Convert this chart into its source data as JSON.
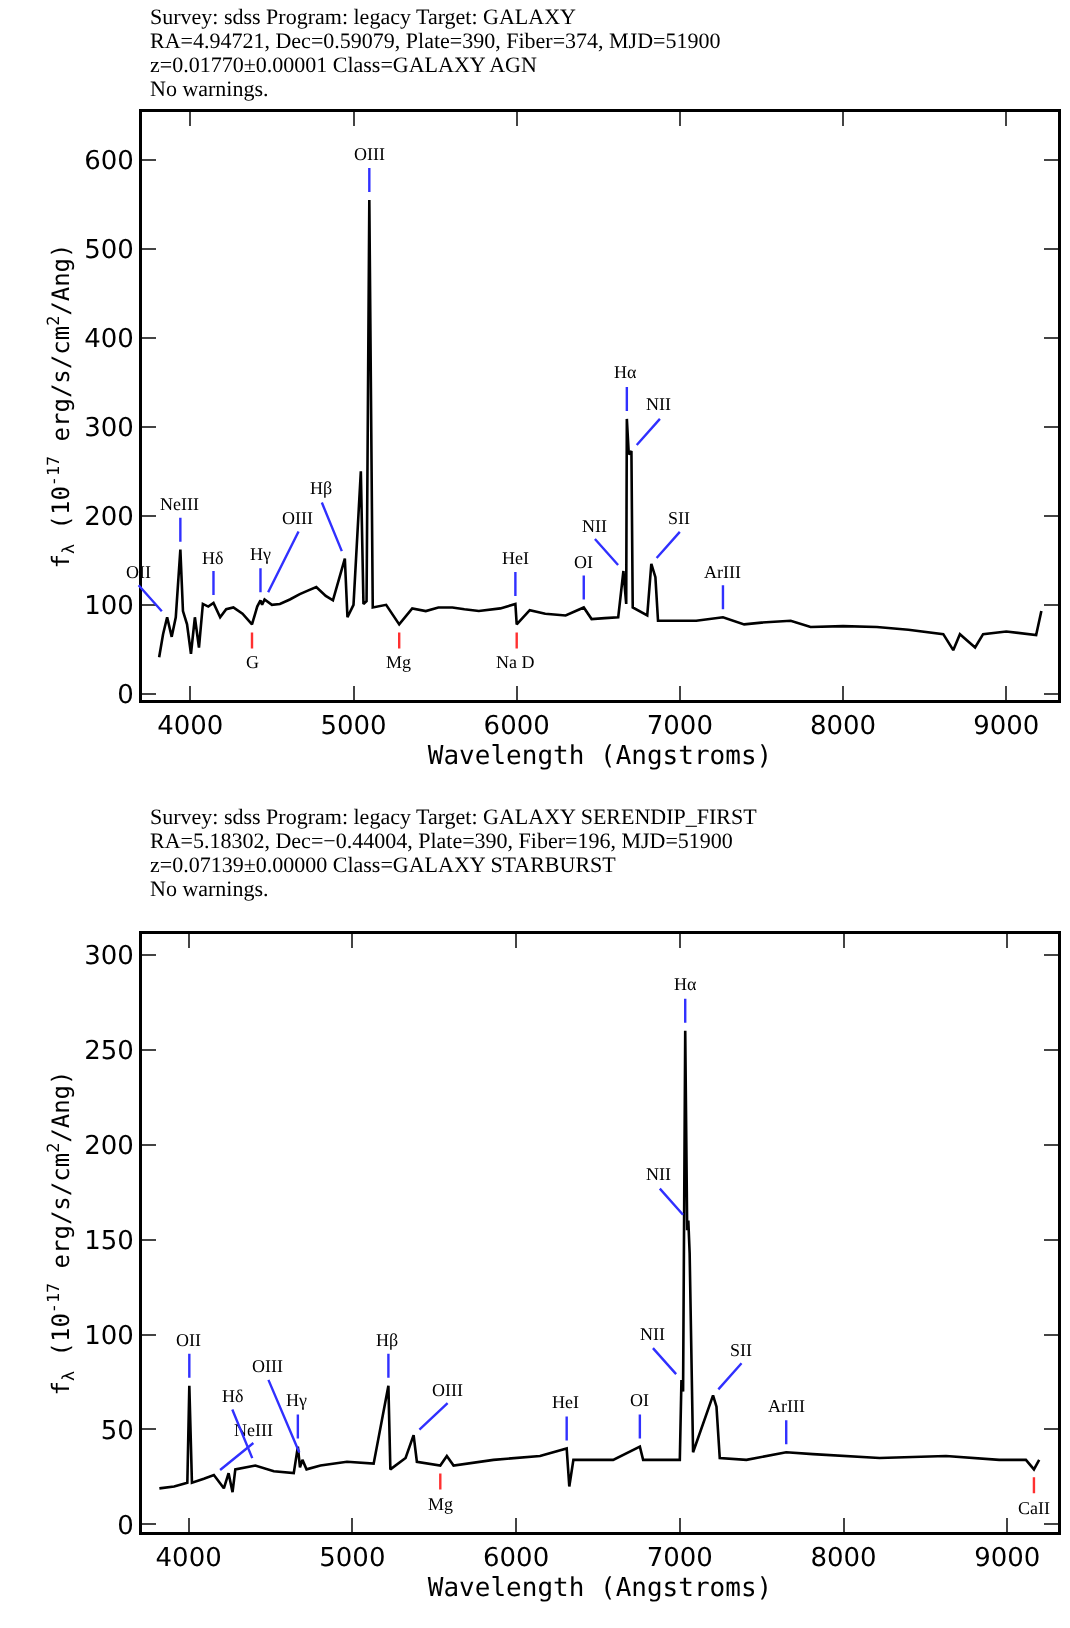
{
  "chart_data": [
    {
      "type": "line",
      "title": "Survey: sdss Program: legacy Target: GALAXY\nRA=4.94721, Dec=0.59079, Plate=390, Fiber=374, MJD=51900\nz=0.01770±0.00001 Class=GALAXY AGN\nNo warnings.",
      "xlabel": "Wavelength (Angstroms)",
      "ylabel": "f$_{λ}$ (10$^{-17}$ erg/s/cm$^{2}$/Ang)",
      "color": "#000000",
      "x": [
        3809,
        3833,
        3858,
        3886,
        3911,
        3939,
        3955,
        3980,
        4004,
        4028,
        4053,
        4077,
        4110,
        4142,
        4183,
        4220,
        4264,
        4320,
        4378,
        4410,
        4430,
        4440,
        4455,
        4500,
        4549,
        4610,
        4671,
        4720,
        4772,
        4830,
        4874,
        4947,
        4963,
        5000,
        5045,
        5061,
        5080,
        5097,
        5118,
        5200,
        5280,
        5360,
        5443,
        5520,
        5606,
        5680,
        5768,
        5900,
        5992,
        6000,
        6080,
        6175,
        6300,
        6411,
        6459,
        6540,
        6622,
        6654,
        6671,
        6675,
        6687,
        6703,
        6711,
        6800,
        6825,
        6850,
        6866,
        6988,
        7100,
        7264,
        7394,
        7500,
        7679,
        7801,
        8000,
        8207,
        8400,
        8614,
        8675,
        8716,
        8809,
        8858,
        9000,
        9183,
        9215
      ],
      "values": [
        41,
        67,
        86,
        64,
        86,
        162,
        93,
        78,
        45,
        86,
        52,
        101,
        98,
        102,
        86,
        95,
        97,
        90,
        78,
        98,
        105,
        100,
        106,
        100,
        101,
        106,
        112,
        116,
        120,
        110,
        105,
        152,
        86,
        100,
        250,
        101,
        104,
        555,
        97,
        100,
        78,
        96,
        93,
        97,
        97,
        95,
        93,
        96,
        101,
        78,
        94,
        90,
        88,
        97,
        84,
        85,
        86,
        138,
        101,
        309,
        269,
        273,
        97,
        88,
        146,
        131,
        82,
        82,
        82,
        86,
        78,
        80,
        82,
        75,
        76,
        75,
        72,
        67,
        49,
        67,
        52,
        67,
        70,
        66,
        93
      ],
      "xlim": [
        3704,
        9317
      ],
      "ylim": [
        -7,
        654
      ],
      "xticks": [
        4000,
        5000,
        6000,
        7000,
        8000,
        9000
      ],
      "yticks": [
        0,
        100,
        200,
        300,
        400,
        500,
        600
      ],
      "annotations": [
        {
          "text": "OII",
          "x": 3858,
          "y": 86
        },
        {
          "text": "NeIII",
          "x": 3939,
          "y": 162
        },
        {
          "text": "Hδ",
          "x": 4142,
          "y": 102
        },
        {
          "text": "Hγ",
          "x": 4430,
          "y": 105
        },
        {
          "text": "OIII",
          "x": 4455,
          "y": 106
        },
        {
          "text": "Hβ",
          "x": 4947,
          "y": 152
        },
        {
          "text": "OIII",
          "x": 5097,
          "y": 555
        },
        {
          "text": "HeI",
          "x": 5992,
          "y": 101
        },
        {
          "text": "OI",
          "x": 6411,
          "y": 97
        },
        {
          "text": "NII",
          "x": 6654,
          "y": 138
        },
        {
          "text": "Hα",
          "x": 6675,
          "y": 309
        },
        {
          "text": "NII",
          "x": 6703,
          "y": 273
        },
        {
          "text": "SII",
          "x": 6825,
          "y": 146
        },
        {
          "text": "ArIII",
          "x": 7264,
          "y": 86
        },
        {
          "text": "G",
          "x": 4378,
          "y": 78
        },
        {
          "text": "Mg",
          "x": 5280,
          "y": 78
        },
        {
          "text": "Na D",
          "x": 6000,
          "y": 78
        }
      ]
    },
    {
      "type": "line",
      "title": "Survey: sdss Program: legacy Target: GALAXY SERENDIP_FIRST\nRA=5.18302, Dec=−0.44004, Plate=390, Fiber=196, MJD=51900\nz=0.07139±0.00000 Class=GALAXY STARBURST\nNo warnings.",
      "xlabel": "Wavelength (Angstroms)",
      "ylabel": "f$_{λ}$ (10$^{-17}$ erg/s/cm$^{2}$/Ang)",
      "color": "#000000",
      "x": [
        3821,
        3911,
        3992,
        4004,
        4020,
        4093,
        4154,
        4215,
        4244,
        4268,
        4285,
        4407,
        4520,
        4642,
        4667,
        4680,
        4695,
        4720,
        4805,
        4967,
        5130,
        5220,
        5232,
        5325,
        5374,
        5394,
        5537,
        5577,
        5618,
        5862,
        6146,
        6309,
        6325,
        6350,
        6593,
        6756,
        6776,
        7000,
        7010,
        7020,
        7033,
        7045,
        7052,
        7060,
        7081,
        7203,
        7224,
        7244,
        7407,
        7650,
        7813,
        8220,
        8626,
        8951,
        9114,
        9163,
        9195
      ],
      "values": [
        19,
        20,
        22,
        73,
        22,
        24,
        26,
        19,
        27,
        17,
        29,
        31,
        28,
        27,
        41,
        30,
        34,
        29,
        31,
        33,
        32,
        73,
        29,
        35,
        47,
        33,
        31,
        36,
        31,
        34,
        36,
        40,
        20,
        34,
        34,
        41,
        34,
        34,
        76,
        70,
        260,
        155,
        160,
        143,
        38,
        68,
        62,
        35,
        34,
        38,
        37,
        35,
        36,
        34,
        34,
        29,
        34
      ],
      "xlim": [
        3715,
        9310
      ],
      "ylim": [
        -4,
        311
      ],
      "xticks": [
        4000,
        5000,
        6000,
        7000,
        8000,
        9000
      ],
      "yticks": [
        0,
        50,
        100,
        150,
        200,
        250,
        300
      ],
      "annotations": [
        {
          "text": "OII",
          "x": 4004,
          "y": 73
        },
        {
          "text": "NeIII",
          "x": 4154,
          "y": 26
        },
        {
          "text": "Hδ",
          "x": 4407,
          "y": 31
        },
        {
          "text": "Hγ",
          "x": 4667,
          "y": 41
        },
        {
          "text": "OIII",
          "x": 4695,
          "y": 34
        },
        {
          "text": "Hβ",
          "x": 5220,
          "y": 73
        },
        {
          "text": "OIII",
          "x": 5374,
          "y": 47
        },
        {
          "text": "HeI",
          "x": 6309,
          "y": 40
        },
        {
          "text": "OI",
          "x": 6756,
          "y": 41
        },
        {
          "text": "NII",
          "x": 7010,
          "y": 76
        },
        {
          "text": "Hα",
          "x": 7033,
          "y": 260
        },
        {
          "text": "NII",
          "x": 7052,
          "y": 160
        },
        {
          "text": "SII",
          "x": 7203,
          "y": 68
        },
        {
          "text": "ArIII",
          "x": 7650,
          "y": 38
        },
        {
          "text": "Mg",
          "x": 5537,
          "y": 31
        },
        {
          "text": "CaII",
          "x": 9163,
          "y": 29
        }
      ]
    }
  ]
}
